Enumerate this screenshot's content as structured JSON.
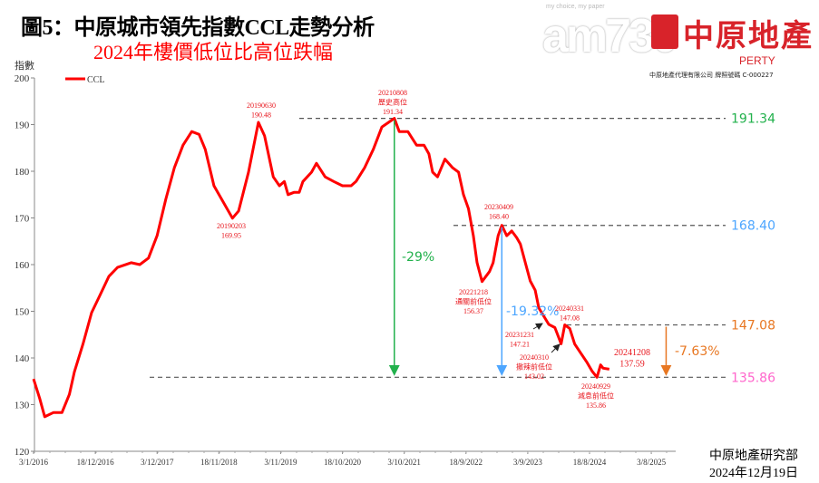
{
  "header": {
    "title": "圖5：中原城市領先指數CCL走勢分析",
    "subtitle": "2024年樓價低位比高位跌幅"
  },
  "logo": {
    "brand_cn": "中原地產",
    "brand_en": "PERTY",
    "license": "中原地產代理有限公司  牌照號碼 C-000227",
    "watermark": "am730",
    "watermark_tagline": "my choice, my paper"
  },
  "footer": {
    "source": "中原地產研究部",
    "date": "2024年12月19日"
  },
  "colors": {
    "series": "#ff0000",
    "high_line": "#22b14c",
    "pre_reopen_line": "#4da6ff",
    "recent_high_line": "#e87722",
    "low_line": "#ff66cc"
  },
  "chart_data": {
    "type": "line",
    "title": "圖5：中原城市領先指數CCL走勢分析",
    "subtitle": "2024年樓價低位比高位跌幅",
    "ylabel": "指數",
    "xlabel": "",
    "ylim": [
      120,
      200
    ],
    "yticks": [
      120,
      130,
      140,
      150,
      160,
      170,
      180,
      190,
      200
    ],
    "xlim": [
      "2016-01-03",
      "2025-12-14"
    ],
    "xticks": [
      "3/1/2016",
      "18/12/2016",
      "3/12/2017",
      "18/11/2018",
      "3/11/2019",
      "18/10/2020",
      "3/10/2021",
      "18/9/2022",
      "3/9/2023",
      "18/8/2024",
      "3/8/2025"
    ],
    "xtick_dates": [
      "2016-01-03",
      "2016-12-18",
      "2017-12-03",
      "2018-11-18",
      "2019-11-03",
      "2020-10-18",
      "2021-10-03",
      "2022-09-18",
      "2023-09-03",
      "2024-08-18",
      "2025-08-03"
    ],
    "grid": false,
    "legend": "top-left",
    "series": [
      {
        "name": "CCL",
        "points": [
          [
            "2016-01-03",
            135.5
          ],
          [
            "2016-02-07",
            131.3
          ],
          [
            "2016-03-06",
            127.4
          ],
          [
            "2016-04-24",
            128.3
          ],
          [
            "2016-06-12",
            128.3
          ],
          [
            "2016-07-24",
            132.2
          ],
          [
            "2016-08-21",
            137.0
          ],
          [
            "2016-10-09",
            143.0
          ],
          [
            "2016-11-27",
            149.7
          ],
          [
            "2017-01-15",
            153.6
          ],
          [
            "2017-03-05",
            157.5
          ],
          [
            "2017-04-23",
            159.4
          ],
          [
            "2017-07-09",
            160.4
          ],
          [
            "2017-08-27",
            160.0
          ],
          [
            "2017-10-15",
            161.4
          ],
          [
            "2017-12-03",
            166.2
          ],
          [
            "2018-01-21",
            174.0
          ],
          [
            "2018-03-11",
            180.8
          ],
          [
            "2018-04-29",
            185.6
          ],
          [
            "2018-06-17",
            188.5
          ],
          [
            "2018-07-29",
            187.9
          ],
          [
            "2018-09-02",
            184.7
          ],
          [
            "2018-10-21",
            176.9
          ],
          [
            "2019-02-03",
            169.95
          ],
          [
            "2019-03-10",
            171.5
          ],
          [
            "2019-05-05",
            179.8
          ],
          [
            "2019-06-30",
            190.48
          ],
          [
            "2019-08-04",
            187.6
          ],
          [
            "2019-09-22",
            178.8
          ],
          [
            "2019-10-27",
            176.9
          ],
          [
            "2019-11-24",
            177.8
          ],
          [
            "2019-12-15",
            175.0
          ],
          [
            "2020-01-19",
            175.5
          ],
          [
            "2020-02-16",
            175.5
          ],
          [
            "2020-03-08",
            177.8
          ],
          [
            "2020-04-26",
            179.8
          ],
          [
            "2020-05-24",
            181.7
          ],
          [
            "2020-07-12",
            178.8
          ],
          [
            "2020-08-30",
            177.8
          ],
          [
            "2020-10-18",
            176.9
          ],
          [
            "2020-12-06",
            176.9
          ],
          [
            "2021-01-03",
            177.8
          ],
          [
            "2021-02-21",
            180.8
          ],
          [
            "2021-04-11",
            184.7
          ],
          [
            "2021-05-30",
            189.5
          ],
          [
            "2021-08-08",
            191.34
          ],
          [
            "2021-09-05",
            188.5
          ],
          [
            "2021-10-24",
            188.5
          ],
          [
            "2021-12-12",
            185.6
          ],
          [
            "2022-01-23",
            185.6
          ],
          [
            "2022-02-20",
            183.7
          ],
          [
            "2022-03-13",
            179.8
          ],
          [
            "2022-04-10",
            178.8
          ],
          [
            "2022-05-22",
            182.6
          ],
          [
            "2022-07-03",
            180.8
          ],
          [
            "2022-08-07",
            179.8
          ],
          [
            "2022-09-04",
            175.0
          ],
          [
            "2022-10-02",
            172.0
          ],
          [
            "2022-10-30",
            166.2
          ],
          [
            "2022-11-20",
            160.4
          ],
          [
            "2022-12-18",
            156.37
          ],
          [
            "2023-01-29",
            158.5
          ],
          [
            "2023-02-19",
            160.4
          ],
          [
            "2023-03-19",
            166.2
          ],
          [
            "2023-04-09",
            168.4
          ],
          [
            "2023-05-07",
            166.2
          ],
          [
            "2023-06-04",
            167.2
          ],
          [
            "2023-07-02",
            165.8
          ],
          [
            "2023-07-23",
            164.4
          ],
          [
            "2023-08-20",
            160.4
          ],
          [
            "2023-09-17",
            156.5
          ],
          [
            "2023-10-15",
            154.5
          ],
          [
            "2023-11-05",
            150.7
          ],
          [
            "2023-12-31",
            147.21
          ],
          [
            "2024-02-04",
            146.5
          ],
          [
            "2024-03-10",
            143.02
          ],
          [
            "2024-03-31",
            147.08
          ],
          [
            "2024-04-28",
            146.3
          ],
          [
            "2024-05-26",
            143.0
          ],
          [
            "2024-06-30",
            141.0
          ],
          [
            "2024-08-04",
            139.0
          ],
          [
            "2024-09-01",
            137.2
          ],
          [
            "2024-09-29",
            135.86
          ],
          [
            "2024-10-20",
            138.5
          ],
          [
            "2024-11-03",
            137.8
          ],
          [
            "2024-12-08",
            137.59
          ]
        ]
      }
    ],
    "reference_lines": [
      {
        "value": 191.34,
        "label": "191.34",
        "color": "#22b14c"
      },
      {
        "value": 168.4,
        "label": "168.40",
        "color": "#4da6ff"
      },
      {
        "value": 147.08,
        "label": "147.08",
        "color": "#e87722"
      },
      {
        "value": 135.86,
        "label": "135.86",
        "color": "#ff66cc"
      }
    ],
    "drops": [
      {
        "from": 191.34,
        "to": 135.86,
        "date": "2021-08-08",
        "label": "-29%",
        "color": "#22b14c"
      },
      {
        "from": 168.4,
        "to": 135.86,
        "date": "2023-04-09",
        "label": "-19.32%",
        "color": "#4da6ff"
      },
      {
        "from": 147.08,
        "to": 135.86,
        "date": "2025-10-26",
        "label": "-7.63%",
        "color": "#e87722"
      }
    ],
    "annotations": [
      {
        "lines": [
          "20190203",
          "169.95"
        ]
      },
      {
        "lines": [
          "20190630",
          "190.48"
        ]
      },
      {
        "lines": [
          "20210808",
          "歷史高位",
          "191.34"
        ]
      },
      {
        "lines": [
          "20230409",
          "168.40"
        ]
      },
      {
        "lines": [
          "20221218",
          "通關前低位",
          "156.37"
        ]
      },
      {
        "lines": [
          "20231231",
          "147.21"
        ]
      },
      {
        "lines": [
          "20240310",
          "撤辣前低位",
          "143.02"
        ]
      },
      {
        "lines": [
          "20240331",
          "147.08"
        ]
      },
      {
        "lines": [
          "20240929",
          "減息前低位",
          "135.86"
        ]
      },
      {
        "lines": [
          "20241208",
          "137.59"
        ]
      }
    ]
  }
}
